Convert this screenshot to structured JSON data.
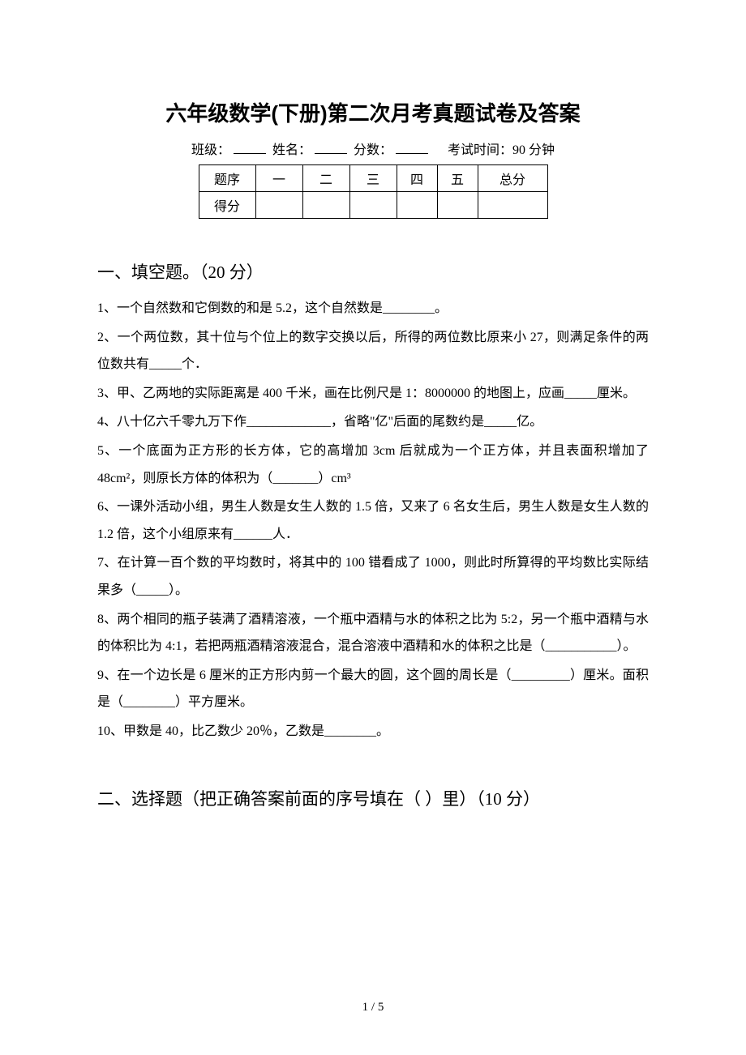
{
  "title": "六年级数学(下册)第二次月考真题试卷及答案",
  "meta": {
    "class_label": "班级：",
    "name_label": "姓名：",
    "score_label": "分数：",
    "time_label": "考试时间：90 分钟"
  },
  "score_table": {
    "headers": [
      "题序",
      "一",
      "二",
      "三",
      "四",
      "五",
      "总分"
    ],
    "row2_label": "得分"
  },
  "section1": {
    "heading": "一、填空题。（20 分）",
    "questions": [
      "1、一个自然数和它倒数的和是 5.2，这个自然数是________。",
      "2、一个两位数，其十位与个位上的数字交换以后，所得的两位数比原来小 27，则满足条件的两位数共有_____个．",
      "3、甲、乙两地的实际距离是 400 千米，画在比例尺是 1：8000000 的地图上，应画_____厘米。",
      "4、八十亿六千零九万下作_____________，省略\"亿\"后面的尾数约是_____亿。",
      "5、一个底面为正方形的长方体，它的高增加 3cm 后就成为一个正方体，并且表面积增加了 48cm²，则原长方体的体积为（_______）cm³",
      "6、一课外活动小组，男生人数是女生人数的 1.5 倍，又来了 6 名女生后，男生人数是女生人数的 1.2 倍，这个小组原来有______人．",
      "7、在计算一百个数的平均数时，将其中的 100 错看成了 1000，则此时所算得的平均数比实际结果多（_____）。",
      "8、两个相同的瓶子装满了酒精溶液，一个瓶中酒精与水的体积之比为 5:2，另一个瓶中酒精与水的体积比为 4:1，若把两瓶酒精溶液混合，混合溶液中酒精和水的体积之比是（___________）。",
      "9、在一个边长是 6 厘米的正方形内剪一个最大的圆，这个圆的周长是（_________）厘米。面积是（________）平方厘米。",
      "10、甲数是 40，比乙数少 20％，乙数是________。"
    ]
  },
  "section2": {
    "heading": "二、选择题（把正确答案前面的序号填在（ ）里）（10 分）"
  },
  "footer": "1 / 5"
}
